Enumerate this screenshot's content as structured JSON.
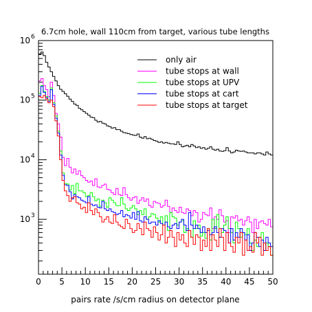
{
  "chart_data": {
    "type": "line",
    "step": true,
    "title": "6.7cm hole, wall 110cm from target, various tube lengths",
    "xlabel": "pairs rate /s/cm radius on detector plane",
    "ylabel": "",
    "xlim": [
      0,
      50
    ],
    "ylim": [
      120,
      1000000
    ],
    "yscale": "log",
    "x_ticks": [
      0,
      5,
      10,
      15,
      20,
      25,
      30,
      35,
      40,
      45,
      50
    ],
    "y_tick_labels": [
      {
        "base": "10",
        "exp": "3",
        "value": 1000
      },
      {
        "base": "10",
        "exp": "4",
        "value": 10000
      },
      {
        "base": "10",
        "exp": "5",
        "value": 100000
      },
      {
        "base": "10",
        "exp": "6",
        "value": 1000000
      }
    ],
    "grid": false,
    "legend_placement": "top-right",
    "bin_edges_start": 0,
    "bin_width": 0.5,
    "series": [
      {
        "name": "only air",
        "color": "#000000",
        "values": [
          580000,
          640000,
          560000,
          430000,
          360000,
          300000,
          250000,
          210000,
          175000,
          152000,
          140000,
          128000,
          116000,
          104000,
          95000,
          86000,
          82000,
          73000,
          69000,
          64000,
          60000,
          56000,
          52000,
          51000,
          46000,
          43000,
          44000,
          41000,
          40000,
          37000,
          36000,
          34000,
          34500,
          32000,
          32000,
          30000,
          28500,
          28000,
          27500,
          26500,
          26000,
          25500,
          27000,
          24000,
          23000,
          24500,
          22500,
          23000,
          22000,
          21000,
          20500,
          19500,
          20000,
          19000,
          19500,
          19000,
          18500,
          18500,
          18000,
          20000,
          18000,
          16500,
          17000,
          17500,
          16500,
          18000,
          17000,
          16000,
          16500,
          15500,
          16000,
          15000,
          15500,
          16500,
          15000,
          14500,
          15000,
          14000,
          13800,
          14200,
          16000,
          14000,
          13000,
          13500,
          14500,
          14000,
          13800,
          14000,
          13500,
          13000,
          13000,
          13000,
          12500,
          13000,
          13000,
          12500,
          12000,
          13500,
          12500,
          12000
        ]
      },
      {
        "name": "tube stops at wall",
        "color": "#ff00ff",
        "values": [
          210000,
          230000,
          175000,
          150000,
          115000,
          200000,
          120000,
          60000,
          40000,
          24000,
          11000,
          8000,
          10500,
          7500,
          6000,
          7000,
          5700,
          6500,
          5400,
          5000,
          4500,
          4200,
          4400,
          3700,
          4800,
          3500,
          3400,
          3700,
          3900,
          3200,
          3100,
          2800,
          2600,
          3300,
          2600,
          2500,
          3400,
          2600,
          2300,
          2100,
          2300,
          2400,
          1850,
          2100,
          2300,
          2000,
          2200,
          1700,
          1600,
          2000,
          1900,
          1850,
          1600,
          1700,
          2100,
          1650,
          1300,
          1550,
          1400,
          1300,
          1600,
          1300,
          1250,
          1500,
          1400,
          1150,
          1400,
          1300,
          900,
          1000,
          1300,
          1200,
          1150,
          1550,
          700,
          1100,
          1000,
          1450,
          1150,
          900,
          950,
          600,
          1100,
          1050,
          1150,
          950,
          1000,
          800,
          950,
          1100,
          900,
          600,
          1000,
          700,
          900,
          950,
          850,
          800,
          1000,
          750
        ]
      },
      {
        "name": "tube stops at UPV",
        "color": "#00ff00",
        "values": [
          130000,
          175000,
          140000,
          115000,
          100000,
          160000,
          90000,
          55000,
          30000,
          14000,
          6000,
          4000,
          3900,
          3100,
          3700,
          2700,
          4000,
          3000,
          3000,
          2800,
          2400,
          2500,
          2800,
          2400,
          2050,
          2200,
          1650,
          2100,
          1900,
          1600,
          2300,
          2100,
          1900,
          1700,
          1700,
          2300,
          1800,
          1500,
          1400,
          1550,
          1700,
          1500,
          1200,
          1400,
          1200,
          1500,
          1000,
          1100,
          1250,
          1200,
          1050,
          900,
          1100,
          800,
          1150,
          650,
          1300,
          1100,
          1050,
          800,
          900,
          950,
          600,
          700,
          650,
          500,
          950,
          700,
          800,
          520,
          600,
          480,
          700,
          450,
          1000,
          700,
          1200,
          500,
          600,
          800,
          1100,
          700,
          600,
          400,
          900,
          700,
          500,
          600,
          550,
          700,
          400,
          300,
          450,
          350,
          500,
          600,
          300,
          400,
          350,
          250
        ]
      },
      {
        "name": "tube stops at cart",
        "color": "#0000ff",
        "values": [
          120000,
          170000,
          135000,
          110000,
          95000,
          150000,
          85000,
          50000,
          28000,
          12000,
          5500,
          3800,
          3700,
          2900,
          2200,
          2600,
          2400,
          2300,
          2100,
          2000,
          1900,
          2400,
          1800,
          1700,
          1750,
          1600,
          1550,
          2000,
          1500,
          1400,
          1500,
          1350,
          1300,
          1200,
          1250,
          1400,
          1100,
          1200,
          1150,
          1050,
          1300,
          1000,
          1350,
          950,
          900,
          1100,
          1000,
          850,
          900,
          900,
          800,
          950,
          850,
          800,
          900,
          750,
          700,
          800,
          850,
          700,
          900,
          1000,
          800,
          650,
          1300,
          800,
          700,
          800,
          700,
          600,
          750,
          600,
          650,
          550,
          600,
          750,
          600,
          500,
          700,
          650,
          600,
          400,
          700,
          450,
          600,
          500,
          700,
          600,
          450,
          550,
          300,
          400,
          600,
          500,
          350,
          450,
          300,
          500,
          400,
          350
        ]
      },
      {
        "name": "tube stops at target",
        "color": "#ff0000",
        "values": [
          115000,
          110000,
          120000,
          105000,
          90000,
          100000,
          78000,
          45000,
          25000,
          10000,
          4500,
          3000,
          2500,
          2000,
          2300,
          2400,
          1900,
          1800,
          1500,
          1600,
          1300,
          1900,
          1400,
          1200,
          1500,
          1300,
          1100,
          900,
          1000,
          1100,
          900,
          850,
          1200,
          900,
          800,
          750,
          700,
          1000,
          850,
          700,
          600,
          650,
          850,
          700,
          550,
          900,
          700,
          650,
          500,
          750,
          600,
          450,
          550,
          800,
          400,
          500,
          650,
          500,
          350,
          600,
          450,
          550,
          400,
          350,
          650,
          500,
          380,
          550,
          500,
          300,
          450,
          350,
          700,
          300,
          550,
          450,
          350,
          700,
          500,
          300,
          600,
          400,
          350,
          280,
          500,
          400,
          600,
          250,
          450,
          300,
          350,
          280,
          600,
          400,
          500,
          250,
          400,
          300,
          350,
          250
        ]
      }
    ]
  }
}
